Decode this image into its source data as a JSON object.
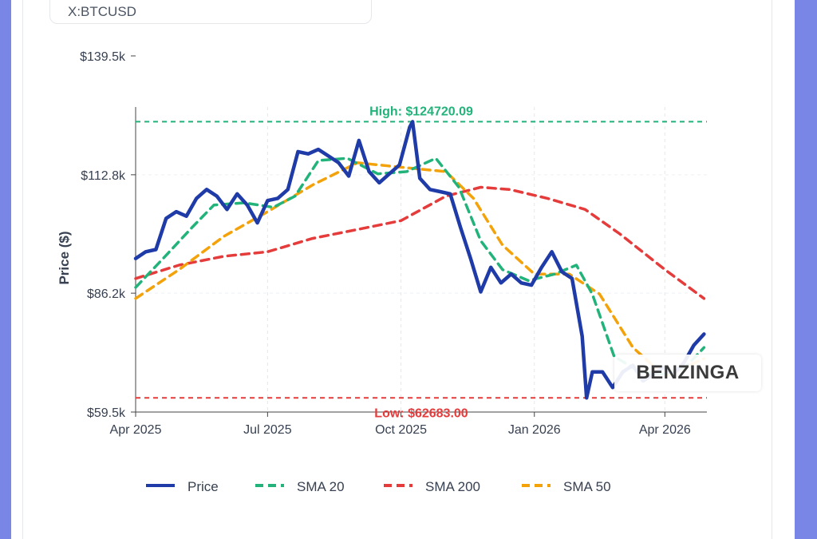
{
  "ticker": "X:BTCUSD",
  "watermark": "BENZINGA",
  "colors": {
    "price": "#1f3ba8",
    "sma20": "#22b37a",
    "sma200": "#e53b3b",
    "sma50": "#f4a20a",
    "high_line": "#22b37a",
    "low_line": "#e53b3b"
  },
  "chart_data": {
    "type": "line",
    "title": "",
    "xlabel": "",
    "ylabel": "Price ($)",
    "ylim": [
      59500,
      139500
    ],
    "y_ticks": [
      {
        "value": 59500,
        "label": "$59.5k"
      },
      {
        "value": 86200,
        "label": "$86.2k"
      },
      {
        "value": 112800,
        "label": "$112.8k"
      },
      {
        "value": 139500,
        "label": "$139.5k"
      }
    ],
    "x_range": [
      "2025-04-01",
      "2026-04-30"
    ],
    "x_ticks": [
      {
        "date": "2025-04-01",
        "label": "Apr 2025"
      },
      {
        "date": "2025-07-01",
        "label": "Jul 2025"
      },
      {
        "date": "2025-10-01",
        "label": "Oct 2025"
      },
      {
        "date": "2026-01-01",
        "label": "Jan 2026"
      },
      {
        "date": "2026-04-01",
        "label": "Apr 2026"
      }
    ],
    "grid": true,
    "legend_position": "bottom",
    "annotations": [
      {
        "type": "hline",
        "value": 124720.09,
        "label": "High: $124720.09",
        "color": "#22b37a"
      },
      {
        "type": "hline",
        "value": 62683.0,
        "label": "Low: $62683.00",
        "color": "#e53b3b"
      }
    ],
    "series": [
      {
        "name": "Price",
        "color": "#1f3ba8",
        "style": "solid",
        "points": [
          [
            "2025-04-01",
            94000
          ],
          [
            "2025-04-08",
            95500
          ],
          [
            "2025-04-15",
            96000
          ],
          [
            "2025-04-22",
            103000
          ],
          [
            "2025-04-29",
            104500
          ],
          [
            "2025-05-06",
            103500
          ],
          [
            "2025-05-13",
            107500
          ],
          [
            "2025-05-20",
            109500
          ],
          [
            "2025-05-27",
            108000
          ],
          [
            "2025-06-03",
            105000
          ],
          [
            "2025-06-10",
            108500
          ],
          [
            "2025-06-17",
            106000
          ],
          [
            "2025-06-24",
            102000
          ],
          [
            "2025-07-01",
            107000
          ],
          [
            "2025-07-08",
            107500
          ],
          [
            "2025-07-15",
            109500
          ],
          [
            "2025-07-22",
            118000
          ],
          [
            "2025-07-29",
            117500
          ],
          [
            "2025-08-05",
            118500
          ],
          [
            "2025-08-12",
            117000
          ],
          [
            "2025-08-19",
            115500
          ],
          [
            "2025-08-26",
            112500
          ],
          [
            "2025-09-02",
            120500
          ],
          [
            "2025-09-09",
            113500
          ],
          [
            "2025-09-16",
            111000
          ],
          [
            "2025-09-23",
            113000
          ],
          [
            "2025-09-30",
            115000
          ],
          [
            "2025-10-07",
            123500
          ],
          [
            "2025-10-09",
            124720
          ],
          [
            "2025-10-14",
            112000
          ],
          [
            "2025-10-21",
            109500
          ],
          [
            "2025-10-28",
            109000
          ],
          [
            "2025-11-04",
            108500
          ],
          [
            "2025-11-11",
            101000
          ],
          [
            "2025-11-18",
            94000
          ],
          [
            "2025-11-25",
            86500
          ],
          [
            "2025-12-02",
            92000
          ],
          [
            "2025-12-09",
            88500
          ],
          [
            "2025-12-16",
            90500
          ],
          [
            "2025-12-23",
            88500
          ],
          [
            "2025-12-30",
            88000
          ],
          [
            "2026-01-06",
            92000
          ],
          [
            "2026-01-13",
            95500
          ],
          [
            "2026-01-20",
            91000
          ],
          [
            "2026-01-27",
            89500
          ],
          [
            "2026-02-03",
            76500
          ],
          [
            "2026-02-06",
            62683
          ],
          [
            "2026-02-10",
            68500
          ],
          [
            "2026-02-17",
            68500
          ],
          [
            "2026-02-24",
            65000
          ],
          [
            "2026-03-03",
            68500
          ],
          [
            "2026-03-10",
            70000
          ],
          [
            "2026-03-17",
            66500
          ],
          [
            "2026-03-24",
            68000
          ],
          [
            "2026-03-31",
            69500
          ],
          [
            "2026-04-07",
            68000
          ],
          [
            "2026-04-14",
            70500
          ],
          [
            "2026-04-21",
            74500
          ],
          [
            "2026-04-28",
            77000
          ]
        ]
      },
      {
        "name": "SMA 20",
        "color": "#22b37a",
        "style": "dashed",
        "points": [
          [
            "2025-04-01",
            87500
          ],
          [
            "2025-04-20",
            94000
          ],
          [
            "2025-05-10",
            101000
          ],
          [
            "2025-05-25",
            106000
          ],
          [
            "2025-06-15",
            106500
          ],
          [
            "2025-07-05",
            105500
          ],
          [
            "2025-07-20",
            108000
          ],
          [
            "2025-08-05",
            116000
          ],
          [
            "2025-08-25",
            116500
          ],
          [
            "2025-09-15",
            113000
          ],
          [
            "2025-10-05",
            113500
          ],
          [
            "2025-10-25",
            116500
          ],
          [
            "2025-11-10",
            110000
          ],
          [
            "2025-11-25",
            98000
          ],
          [
            "2025-12-10",
            91500
          ],
          [
            "2025-12-28",
            89000
          ],
          [
            "2026-01-15",
            90500
          ],
          [
            "2026-01-30",
            92500
          ],
          [
            "2026-02-10",
            86000
          ],
          [
            "2026-02-25",
            72000
          ],
          [
            "2026-03-15",
            68500
          ],
          [
            "2026-04-01",
            68000
          ],
          [
            "2026-04-15",
            69500
          ],
          [
            "2026-04-28",
            74000
          ]
        ]
      },
      {
        "name": "SMA 200",
        "color": "#e53b3b",
        "style": "dashed",
        "points": [
          [
            "2025-04-01",
            89500
          ],
          [
            "2025-05-01",
            92500
          ],
          [
            "2025-06-01",
            94500
          ],
          [
            "2025-07-01",
            95500
          ],
          [
            "2025-08-01",
            98500
          ],
          [
            "2025-09-01",
            100500
          ],
          [
            "2025-10-01",
            102500
          ],
          [
            "2025-11-01",
            108000
          ],
          [
            "2025-11-25",
            110000
          ],
          [
            "2025-12-15",
            109500
          ],
          [
            "2026-01-10",
            107500
          ],
          [
            "2026-02-05",
            105000
          ],
          [
            "2026-03-01",
            99500
          ],
          [
            "2026-04-01",
            91500
          ],
          [
            "2026-04-28",
            85000
          ]
        ]
      },
      {
        "name": "SMA 50",
        "color": "#f4a20a",
        "style": "dashed",
        "points": [
          [
            "2025-04-01",
            85000
          ],
          [
            "2025-05-01",
            91500
          ],
          [
            "2025-06-01",
            99000
          ],
          [
            "2025-07-01",
            104500
          ],
          [
            "2025-08-01",
            110500
          ],
          [
            "2025-09-01",
            115500
          ],
          [
            "2025-10-01",
            114500
          ],
          [
            "2025-11-01",
            113500
          ],
          [
            "2025-11-20",
            107500
          ],
          [
            "2025-12-10",
            97000
          ],
          [
            "2026-01-01",
            90500
          ],
          [
            "2026-01-25",
            90500
          ],
          [
            "2026-02-15",
            86000
          ],
          [
            "2026-03-10",
            74000
          ],
          [
            "2026-04-01",
            67500
          ],
          [
            "2026-04-28",
            71500
          ]
        ]
      }
    ]
  }
}
